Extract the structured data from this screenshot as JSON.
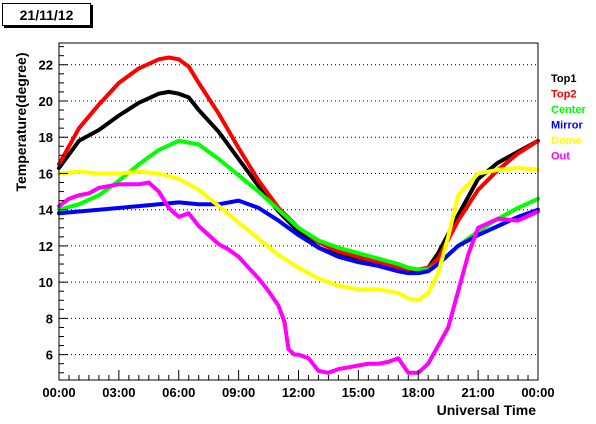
{
  "title": "21/11/12",
  "chart_data": {
    "type": "line",
    "title": "21/11/12",
    "xlabel": "Universal Time",
    "ylabel": "Temperature(degree)",
    "xlim": [
      0,
      24
    ],
    "ylim": [
      4.6,
      23.2
    ],
    "x_ticks": [
      0,
      3,
      6,
      9,
      12,
      15,
      18,
      21,
      24
    ],
    "x_tick_labels": [
      "00:00",
      "03:00",
      "06:00",
      "09:00",
      "12:00",
      "15:00",
      "18:00",
      "21:00",
      "00:00"
    ],
    "y_ticks": [
      6,
      8,
      10,
      12,
      14,
      16,
      18,
      20,
      22
    ],
    "y_tick_labels": [
      "6",
      "8",
      "10",
      "12",
      "14",
      "16",
      "18",
      "20",
      "22"
    ],
    "grid": "horizontal dotted",
    "legend": "right",
    "series": [
      {
        "name": "Top1",
        "color": "#000000",
        "x": [
          0,
          1,
          2,
          3,
          4,
          5,
          5.5,
          6,
          6.5,
          7,
          8,
          9,
          10,
          11,
          12,
          13,
          14,
          15,
          16,
          17,
          17.5,
          18,
          18.5,
          19,
          20,
          21,
          22,
          23,
          24
        ],
        "y": [
          16.3,
          17.8,
          18.4,
          19.2,
          19.9,
          20.4,
          20.5,
          20.4,
          20.2,
          19.5,
          18.3,
          16.8,
          15.3,
          13.9,
          12.8,
          11.9,
          11.5,
          11.2,
          11.0,
          10.7,
          10.6,
          10.6,
          10.8,
          11.6,
          13.7,
          15.7,
          16.6,
          17.2,
          17.8
        ]
      },
      {
        "name": "Top2",
        "color": "#ff0000",
        "x": [
          0,
          1,
          2,
          3,
          4,
          5,
          5.5,
          6,
          6.5,
          7,
          8,
          9,
          10,
          11,
          12,
          13,
          14,
          15,
          16,
          17,
          17.5,
          18,
          18.5,
          19,
          20,
          21,
          22,
          23,
          24
        ],
        "y": [
          16.5,
          18.5,
          19.8,
          21.0,
          21.8,
          22.3,
          22.4,
          22.3,
          21.9,
          21.0,
          19.3,
          17.4,
          15.6,
          14.1,
          13.0,
          12.2,
          11.7,
          11.4,
          11.1,
          10.8,
          10.7,
          10.7,
          10.8,
          11.3,
          13.4,
          15.1,
          16.2,
          17.1,
          17.8
        ]
      },
      {
        "name": "Center",
        "color": "#00ff00",
        "x": [
          0,
          1,
          2,
          3,
          4,
          5,
          6,
          7,
          8,
          9,
          10,
          11,
          12,
          13,
          14,
          15,
          16,
          17,
          17.5,
          18,
          18.5,
          19,
          20,
          21,
          22,
          23,
          24
        ],
        "y": [
          14.0,
          14.3,
          14.8,
          15.6,
          16.5,
          17.3,
          17.8,
          17.6,
          16.8,
          15.9,
          15.0,
          14.0,
          13.0,
          12.3,
          11.9,
          11.6,
          11.3,
          11.0,
          10.8,
          10.7,
          10.7,
          11.0,
          12.0,
          12.8,
          13.5,
          14.1,
          14.6
        ]
      },
      {
        "name": "Mirror",
        "color": "#0000ff",
        "x": [
          0,
          2,
          4,
          5,
          6,
          7,
          8,
          9,
          10,
          11,
          12,
          13,
          14,
          15,
          16,
          17,
          17.5,
          18,
          18.5,
          19,
          20,
          21,
          22,
          23,
          24
        ],
        "y": [
          13.8,
          14.0,
          14.2,
          14.3,
          14.4,
          14.3,
          14.3,
          14.5,
          14.1,
          13.4,
          12.6,
          11.9,
          11.4,
          11.1,
          10.9,
          10.6,
          10.5,
          10.5,
          10.6,
          11.0,
          12.0,
          12.6,
          13.1,
          13.6,
          14.0
        ]
      },
      {
        "name": "Dome",
        "color": "#ffff00",
        "x": [
          0,
          1,
          2,
          3,
          4,
          5,
          6,
          7,
          8,
          9,
          10,
          11,
          12,
          13,
          14,
          15,
          16,
          17,
          17.5,
          18,
          18.5,
          19,
          19.5,
          20,
          21,
          22,
          23,
          24
        ],
        "y": [
          16.0,
          16.1,
          16.0,
          16.0,
          16.1,
          16.0,
          15.7,
          15.1,
          14.2,
          13.3,
          12.4,
          11.5,
          10.8,
          10.2,
          9.8,
          9.6,
          9.6,
          9.4,
          9.1,
          9.0,
          9.4,
          10.5,
          12.5,
          14.8,
          16.0,
          16.2,
          16.3,
          16.2
        ]
      },
      {
        "name": "Out",
        "color": "#ff00ff",
        "x": [
          0,
          0.5,
          1,
          1.5,
          2,
          3,
          4,
          4.5,
          5,
          5.5,
          6,
          6.5,
          7,
          7.5,
          8,
          8.5,
          9,
          9.5,
          10,
          10.5,
          11,
          11.3,
          11.5,
          11.8,
          12,
          12.5,
          13,
          13.5,
          14,
          14.5,
          15,
          15.5,
          16,
          16.5,
          17,
          17.5,
          18,
          18.5,
          19,
          19.5,
          20,
          20.5,
          21,
          22,
          23,
          24
        ],
        "y": [
          14.2,
          14.6,
          14.8,
          14.9,
          15.2,
          15.4,
          15.4,
          15.5,
          15.0,
          14.1,
          13.6,
          13.8,
          13.1,
          12.6,
          12.1,
          11.8,
          11.4,
          10.8,
          10.2,
          9.5,
          8.7,
          7.8,
          6.3,
          6.0,
          6.0,
          5.8,
          5.1,
          5.0,
          5.2,
          5.3,
          5.4,
          5.5,
          5.5,
          5.6,
          5.8,
          5.0,
          5.0,
          5.5,
          6.5,
          7.5,
          9.5,
          11.5,
          13.0,
          13.5,
          13.4,
          13.9
        ]
      }
    ]
  }
}
